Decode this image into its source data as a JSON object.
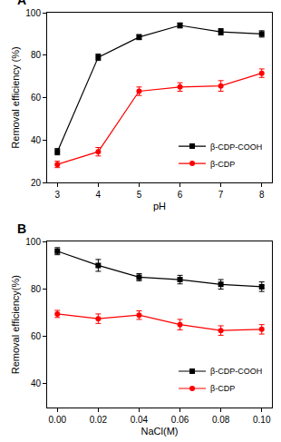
{
  "chart_data": [
    {
      "type": "line",
      "annotations": [
        "A"
      ],
      "x_label": "pH",
      "y_label": "Removal efficiency (%)",
      "x": [
        3,
        4,
        5,
        6,
        7,
        8
      ],
      "xlim": [
        3,
        8
      ],
      "xticks": [
        3,
        4,
        5,
        6,
        7,
        8
      ],
      "ylim": [
        20,
        100
      ],
      "yticks": [
        20,
        40,
        60,
        80,
        100
      ],
      "grid": false,
      "legend": "bottom right",
      "series": [
        {
          "name": "β-CDP-COOH",
          "color": "#000000",
          "marker": "square",
          "values": [
            34.5,
            79,
            88.5,
            94,
            91,
            90
          ],
          "errors": [
            1.5,
            1.5,
            1.2,
            1.2,
            1.5,
            1.5
          ]
        },
        {
          "name": "β-CDP",
          "color": "#ff0000",
          "marker": "circle",
          "values": [
            28.5,
            34.5,
            63,
            65,
            65.5,
            71.5
          ],
          "errors": [
            1.5,
            2,
            2,
            2,
            2.5,
            2
          ]
        }
      ]
    },
    {
      "type": "line",
      "annotations": [
        "B"
      ],
      "x_label": "NaCl(M)",
      "y_label": "Removal efficiency(%)",
      "x": [
        0,
        0.02,
        0.04,
        0.06,
        0.08,
        0.1
      ],
      "xlim": [
        0,
        0.1
      ],
      "xticks": [
        {
          "value": 0,
          "label": "0.00"
        },
        {
          "value": 0.02,
          "label": "0.02"
        },
        {
          "value": 0.04,
          "label": "0.04"
        },
        {
          "value": 0.06,
          "label": "0.06"
        },
        {
          "value": 0.08,
          "label": "0.08"
        },
        {
          "value": 0.1,
          "label": "0.10"
        }
      ],
      "ylim": [
        30,
        100
      ],
      "yticks": [
        40,
        60,
        80,
        100
      ],
      "grid": false,
      "legend": "bottom right",
      "series": [
        {
          "name": "β-CDP-COOH",
          "color": "#000000",
          "marker": "square",
          "values": [
            96,
            90,
            85,
            84,
            82,
            81
          ],
          "errors": [
            1.5,
            2.5,
            1.5,
            1.8,
            2,
            2
          ]
        },
        {
          "name": "β-CDP",
          "color": "#ff0000",
          "marker": "circle",
          "values": [
            69.5,
            67.5,
            69,
            65,
            62.5,
            63
          ],
          "errors": [
            1.5,
            2,
            1.8,
            2.2,
            2,
            2
          ]
        }
      ]
    }
  ]
}
